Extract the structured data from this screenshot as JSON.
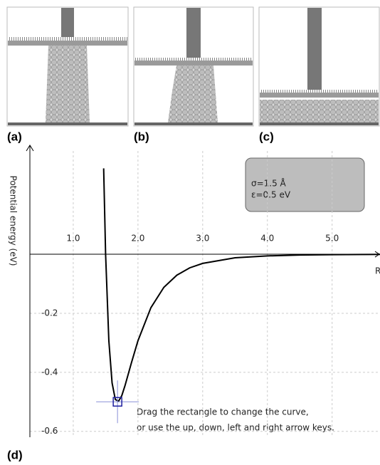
{
  "panel_labels": [
    "(a)",
    "(b)",
    "(c)",
    "(d)"
  ],
  "chart_data": {
    "type": "line",
    "y_label": "Potential energy (eV)",
    "x_label": "R",
    "info": [
      "σ=1.5 Å",
      "ε=0.5 eV"
    ],
    "hint": [
      "Drag the rectangle to change the curve,",
      "or use the up, down, left and right arrow keys."
    ],
    "x": [
      1.47,
      1.5,
      1.55,
      1.6,
      1.65,
      1.7,
      1.75,
      1.8,
      1.9,
      2.0,
      2.2,
      2.4,
      2.6,
      2.8,
      3.0,
      3.5,
      4.0,
      4.5,
      5.0,
      5.5,
      5.75
    ],
    "values": [
      0.291,
      0,
      -0.293,
      -0.436,
      -0.492,
      -0.498,
      -0.479,
      -0.445,
      -0.367,
      -0.293,
      -0.181,
      -0.112,
      -0.071,
      -0.046,
      -0.031,
      -0.012,
      -0.0055,
      -0.0027,
      -0.0015,
      -0.0008,
      -0.0006
    ],
    "color": "#000000",
    "handle": {
      "x": 1.684,
      "y": -0.5
    },
    "xlim": [
      0.33,
      5.74
    ],
    "ylim": [
      -0.62,
      0.35
    ],
    "xticks": [
      {
        "value": 1,
        "label": "1.0"
      },
      {
        "value": 2,
        "label": "2.0"
      },
      {
        "value": 3,
        "label": "3.0"
      },
      {
        "value": 4,
        "label": "4.0"
      },
      {
        "value": 5,
        "label": "5.0"
      }
    ],
    "yticks": [
      -0.6,
      -0.4,
      -0.2
    ],
    "grid": true
  }
}
